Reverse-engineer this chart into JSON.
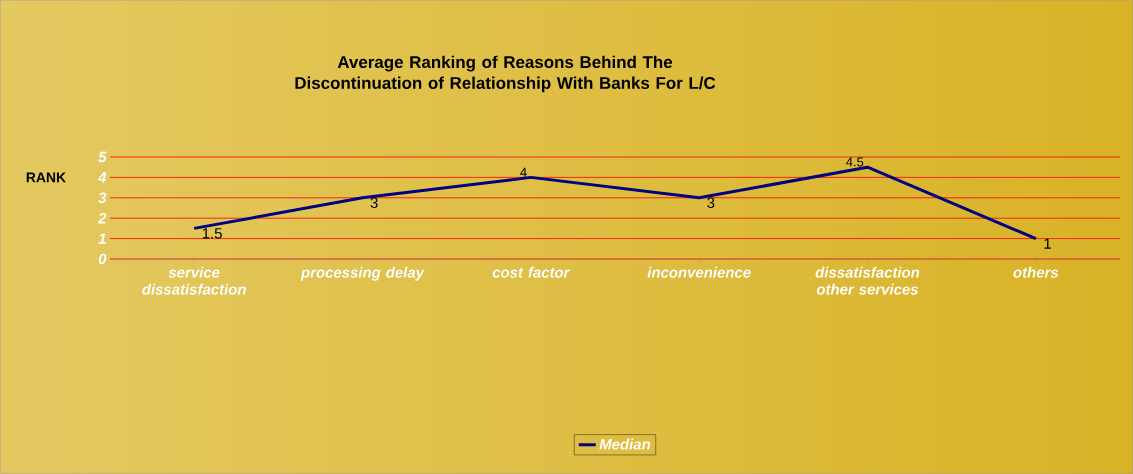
{
  "chart_data": {
    "type": "line",
    "title": "Average Ranking of Reasons Behind The Discontinuation of Relationship With Banks For L/C",
    "categories": [
      "service dissatisfaction",
      "processing delay",
      "cost factor",
      "inconvenience",
      "dissatisfaction other services",
      "others"
    ],
    "series": [
      {
        "name": "Median",
        "color": "#000080",
        "values": [
          1.5,
          3,
          4,
          3,
          4.5,
          1
        ]
      }
    ],
    "ylabel": "RANK",
    "ylim": [
      0,
      5
    ],
    "yticks": [
      0,
      1,
      2,
      3,
      4,
      5
    ],
    "grid": "y",
    "legend": "bottom",
    "data_labels": true,
    "marker": "none",
    "line_style": "solid"
  }
}
